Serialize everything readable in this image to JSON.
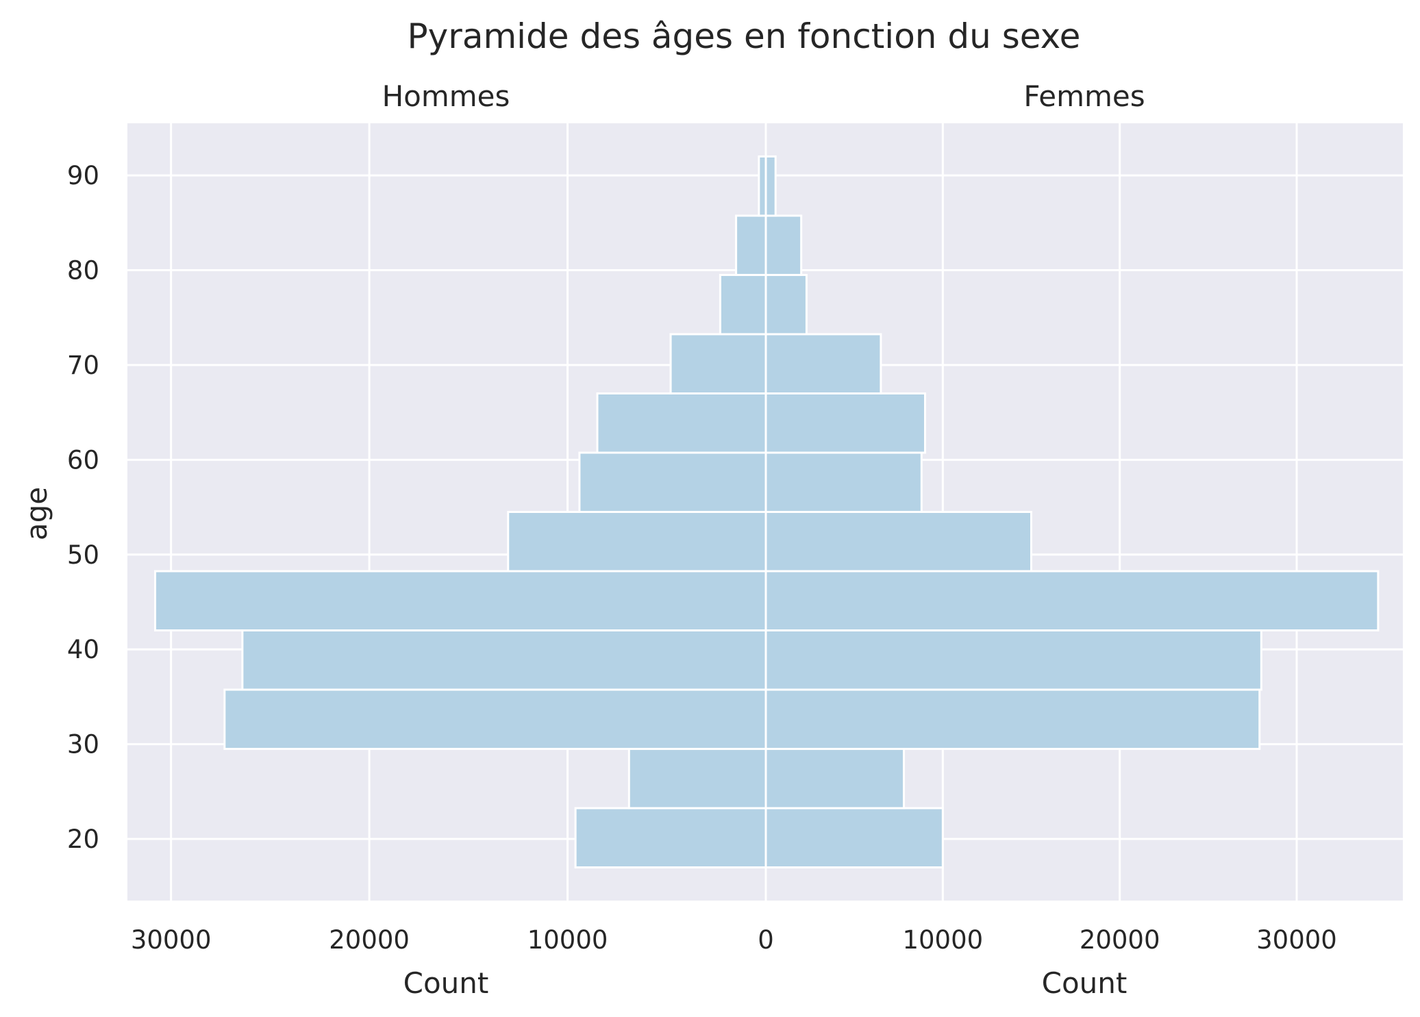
{
  "chart_data": {
    "type": "bar",
    "orientation": "horizontal",
    "title": "Pyramide des âges en fonction du sexe",
    "ylabel": "age",
    "bin_width": 6.25,
    "y_tick_labels": [
      "20",
      "30",
      "40",
      "50",
      "60",
      "70",
      "80",
      "90"
    ],
    "ylim": [
      13.5,
      95.5
    ],
    "grid": true,
    "panels": [
      {
        "subtitle": "Hommes",
        "xlabel": "Count",
        "xlim": [
          32200,
          0
        ],
        "x_tick_labels": [
          "30000",
          "20000",
          "10000",
          "0"
        ],
        "bins": [
          {
            "age_start": 17.0,
            "count": 9600
          },
          {
            "age_start": 23.25,
            "count": 6900
          },
          {
            "age_start": 29.5,
            "count": 27300
          },
          {
            "age_start": 35.75,
            "count": 26400
          },
          {
            "age_start": 42.0,
            "count": 30800
          },
          {
            "age_start": 48.25,
            "count": 13000
          },
          {
            "age_start": 54.5,
            "count": 9400
          },
          {
            "age_start": 60.75,
            "count": 8500
          },
          {
            "age_start": 67.0,
            "count": 4800
          },
          {
            "age_start": 73.25,
            "count": 2300
          },
          {
            "age_start": 79.5,
            "count": 1500
          },
          {
            "age_start": 85.75,
            "count": 350
          }
        ]
      },
      {
        "subtitle": "Femmes",
        "xlabel": "Count",
        "xlim": [
          0,
          36000
        ],
        "x_tick_labels": [
          "10000",
          "20000",
          "30000"
        ],
        "bins": [
          {
            "age_start": 17.0,
            "count": 10000
          },
          {
            "age_start": 23.25,
            "count": 7800
          },
          {
            "age_start": 29.5,
            "count": 27900
          },
          {
            "age_start": 35.75,
            "count": 28000
          },
          {
            "age_start": 42.0,
            "count": 34600
          },
          {
            "age_start": 48.25,
            "count": 15000
          },
          {
            "age_start": 54.5,
            "count": 8800
          },
          {
            "age_start": 60.75,
            "count": 9000
          },
          {
            "age_start": 67.0,
            "count": 6500
          },
          {
            "age_start": 73.25,
            "count": 2300
          },
          {
            "age_start": 79.5,
            "count": 2000
          },
          {
            "age_start": 85.75,
            "count": 550
          }
        ]
      }
    ]
  }
}
